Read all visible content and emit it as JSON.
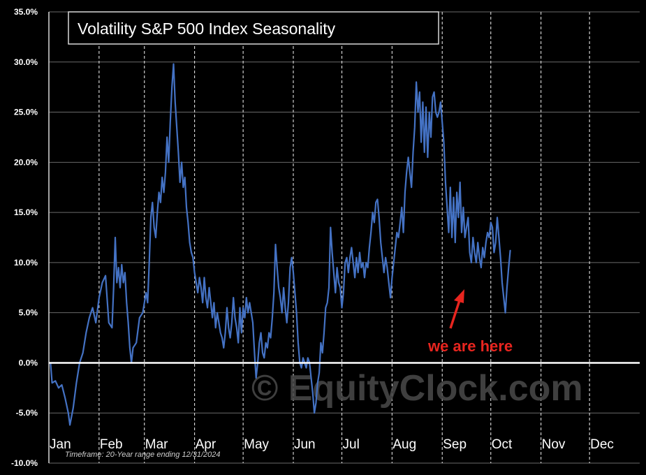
{
  "chart_data": {
    "type": "line",
    "title": "Volatility S&P 500 Index Seasonality",
    "footnote": "Timeframe: 20-Year range ending 12/31/2024",
    "watermark": "© EquityClock.com",
    "annotation": {
      "text": "we are here",
      "color": "#e8251f"
    },
    "xlabel": "",
    "ylabel": "",
    "x_months": [
      "Jan",
      "Feb",
      "Mar",
      "Apr",
      "May",
      "Jun",
      "Jul",
      "Aug",
      "Sep",
      "Oct",
      "Nov",
      "Dec"
    ],
    "y_ticks": [
      "35.0%",
      "30.0%",
      "25.0%",
      "20.0%",
      "15.0%",
      "10.0%",
      "5.0%",
      "0.0%",
      "-5.0%",
      "-10.0%"
    ],
    "ylim": [
      -10,
      35
    ],
    "xlim": [
      0,
      365
    ],
    "grid": {
      "horizontal": "solid",
      "vertical": "dashed"
    },
    "line_color": "#4472c4",
    "background": "#000000",
    "series": [
      {
        "values": [
          [
            1,
            0.0
          ],
          [
            2,
            -2.0
          ],
          [
            4,
            -1.8
          ],
          [
            6,
            -2.5
          ],
          [
            8,
            -2.2
          ],
          [
            10,
            -3.5
          ],
          [
            12,
            -5.0
          ],
          [
            13,
            -6.2
          ],
          [
            15,
            -4.5
          ],
          [
            17,
            -2.0
          ],
          [
            19,
            0.0
          ],
          [
            21,
            1.0
          ],
          [
            23,
            3.0
          ],
          [
            25,
            4.5
          ],
          [
            27,
            5.5
          ],
          [
            29,
            4.0
          ],
          [
            31,
            6.5
          ],
          [
            33,
            8.0
          ],
          [
            35,
            8.7
          ],
          [
            37,
            4.0
          ],
          [
            39,
            3.5
          ],
          [
            40,
            7.5
          ],
          [
            41,
            12.5
          ],
          [
            42,
            8.0
          ],
          [
            43,
            9.5
          ],
          [
            44,
            7.5
          ],
          [
            45,
            9.8
          ],
          [
            46,
            8.0
          ],
          [
            47,
            9.0
          ],
          [
            48,
            6.0
          ],
          [
            49,
            4.0
          ],
          [
            50,
            1.5
          ],
          [
            51,
            0.0
          ],
          [
            52,
            1.5
          ],
          [
            54,
            2.0
          ],
          [
            56,
            4.5
          ],
          [
            58,
            5.0
          ],
          [
            60,
            7.0
          ],
          [
            61,
            6.0
          ],
          [
            62,
            10.0
          ],
          [
            63,
            14.5
          ],
          [
            64,
            16.0
          ],
          [
            65,
            13.5
          ],
          [
            66,
            12.5
          ],
          [
            67,
            15.0
          ],
          [
            68,
            17.0
          ],
          [
            69,
            16.0
          ],
          [
            70,
            18.5
          ],
          [
            71,
            17.0
          ],
          [
            72,
            19.0
          ],
          [
            73,
            22.5
          ],
          [
            74,
            20.0
          ],
          [
            75,
            24.0
          ],
          [
            76,
            27.5
          ],
          [
            77,
            29.8
          ],
          [
            78,
            26.0
          ],
          [
            79,
            23.5
          ],
          [
            80,
            21.0
          ],
          [
            81,
            18.0
          ],
          [
            82,
            20.0
          ],
          [
            83,
            17.5
          ],
          [
            84,
            18.5
          ],
          [
            85,
            15.5
          ],
          [
            86,
            14.0
          ],
          [
            87,
            12.0
          ],
          [
            88,
            11.0
          ],
          [
            89,
            10.5
          ],
          [
            90,
            9.0
          ],
          [
            91,
            8.0
          ],
          [
            92,
            7.0
          ],
          [
            93,
            8.5
          ],
          [
            94,
            7.5
          ],
          [
            95,
            6.0
          ],
          [
            96,
            8.5
          ],
          [
            97,
            6.5
          ],
          [
            98,
            5.5
          ],
          [
            99,
            7.5
          ],
          [
            100,
            6.0
          ],
          [
            101,
            4.5
          ],
          [
            102,
            6.0
          ],
          [
            103,
            3.5
          ],
          [
            104,
            5.0
          ],
          [
            105,
            4.0
          ],
          [
            106,
            3.0
          ],
          [
            107,
            2.5
          ],
          [
            108,
            1.5
          ],
          [
            109,
            3.0
          ],
          [
            110,
            5.5
          ],
          [
            111,
            3.5
          ],
          [
            112,
            2.5
          ],
          [
            113,
            4.0
          ],
          [
            114,
            6.5
          ],
          [
            115,
            4.5
          ],
          [
            116,
            3.5
          ],
          [
            117,
            2.0
          ],
          [
            118,
            5.5
          ],
          [
            119,
            3.0
          ],
          [
            120,
            5.5
          ],
          [
            121,
            4.5
          ],
          [
            122,
            6.5
          ],
          [
            123,
            5.0
          ],
          [
            124,
            6.0
          ],
          [
            125,
            5.0
          ],
          [
            126,
            4.0
          ],
          [
            127,
            1.0
          ],
          [
            128,
            -1.5
          ],
          [
            129,
            0.0
          ],
          [
            130,
            2.0
          ],
          [
            131,
            3.0
          ],
          [
            132,
            1.0
          ],
          [
            133,
            0.5
          ],
          [
            134,
            2.0
          ],
          [
            135,
            1.5
          ],
          [
            136,
            3.0
          ],
          [
            137,
            2.5
          ],
          [
            138,
            4.5
          ],
          [
            139,
            7.0
          ],
          [
            140,
            11.8
          ],
          [
            141,
            9.5
          ],
          [
            142,
            7.5
          ],
          [
            143,
            6.5
          ],
          [
            144,
            5.0
          ],
          [
            145,
            7.5
          ],
          [
            146,
            5.5
          ],
          [
            147,
            4.0
          ],
          [
            148,
            6.0
          ],
          [
            149,
            9.5
          ],
          [
            150,
            10.5
          ],
          [
            151,
            9.0
          ],
          [
            152,
            7.0
          ],
          [
            153,
            5.0
          ],
          [
            154,
            2.0
          ],
          [
            155,
            0.0
          ],
          [
            156,
            -0.5
          ],
          [
            157,
            0.5
          ],
          [
            158,
            0.0
          ],
          [
            159,
            -0.5
          ],
          [
            160,
            0.5
          ],
          [
            161,
            0.0
          ],
          [
            162,
            -1.5
          ],
          [
            163,
            -3.0
          ],
          [
            164,
            -5.0
          ],
          [
            165,
            -4.0
          ],
          [
            166,
            -2.0
          ],
          [
            167,
            -1.0
          ],
          [
            168,
            2.0
          ],
          [
            169,
            1.0
          ],
          [
            170,
            3.0
          ],
          [
            171,
            5.5
          ],
          [
            172,
            6.0
          ],
          [
            173,
            7.5
          ],
          [
            174,
            13.5
          ],
          [
            175,
            11.0
          ],
          [
            176,
            9.0
          ],
          [
            177,
            7.0
          ],
          [
            178,
            9.5
          ],
          [
            179,
            8.0
          ],
          [
            180,
            7.5
          ],
          [
            181,
            5.5
          ],
          [
            182,
            7.0
          ],
          [
            183,
            10.0
          ],
          [
            184,
            10.5
          ],
          [
            185,
            9.0
          ],
          [
            186,
            10.5
          ],
          [
            187,
            11.5
          ],
          [
            188,
            10.0
          ],
          [
            189,
            8.5
          ],
          [
            190,
            10.5
          ],
          [
            191,
            9.0
          ],
          [
            192,
            11.0
          ],
          [
            193,
            9.5
          ],
          [
            194,
            10.0
          ],
          [
            195,
            8.5
          ],
          [
            196,
            10.0
          ],
          [
            197,
            9.5
          ],
          [
            198,
            11.5
          ],
          [
            199,
            13.0
          ],
          [
            200,
            15.0
          ],
          [
            201,
            14.0
          ],
          [
            202,
            16.0
          ],
          [
            203,
            16.3
          ],
          [
            204,
            14.5
          ],
          [
            205,
            12.0
          ],
          [
            206,
            10.5
          ],
          [
            207,
            9.0
          ],
          [
            208,
            10.5
          ],
          [
            209,
            9.5
          ],
          [
            210,
            8.0
          ],
          [
            211,
            6.5
          ],
          [
            212,
            8.5
          ],
          [
            213,
            10.0
          ],
          [
            214,
            11.5
          ],
          [
            215,
            13.0
          ],
          [
            216,
            12.5
          ],
          [
            217,
            14.0
          ],
          [
            218,
            15.5
          ],
          [
            219,
            13.0
          ],
          [
            220,
            17.0
          ],
          [
            221,
            19.0
          ],
          [
            222,
            20.5
          ],
          [
            223,
            19.0
          ],
          [
            224,
            17.5
          ],
          [
            225,
            21.0
          ],
          [
            226,
            23.5
          ],
          [
            227,
            28.0
          ],
          [
            228,
            25.0
          ],
          [
            229,
            27.0
          ],
          [
            230,
            22.0
          ],
          [
            231,
            26.0
          ],
          [
            232,
            21.0
          ],
          [
            233,
            25.5
          ],
          [
            234,
            20.5
          ],
          [
            235,
            25.0
          ],
          [
            236,
            22.5
          ],
          [
            237,
            26.5
          ],
          [
            238,
            27.0
          ],
          [
            239,
            25.0
          ],
          [
            240,
            24.5
          ],
          [
            241,
            25.0
          ],
          [
            242,
            26.0
          ],
          [
            243,
            24.0
          ],
          [
            244,
            22.0
          ],
          [
            245,
            18.0
          ],
          [
            246,
            15.5
          ],
          [
            247,
            13.0
          ],
          [
            248,
            17.5
          ],
          [
            249,
            12.5
          ],
          [
            250,
            16.5
          ],
          [
            251,
            12.0
          ],
          [
            252,
            17.0
          ],
          [
            253,
            14.5
          ],
          [
            254,
            18.0
          ],
          [
            255,
            13.0
          ],
          [
            256,
            15.5
          ],
          [
            257,
            12.5
          ],
          [
            258,
            13.5
          ],
          [
            259,
            14.5
          ],
          [
            260,
            11.0
          ],
          [
            261,
            10.0
          ],
          [
            262,
            12.5
          ],
          [
            263,
            11.0
          ],
          [
            264,
            10.0
          ],
          [
            265,
            12.0
          ],
          [
            266,
            10.5
          ],
          [
            267,
            9.5
          ],
          [
            268,
            11.5
          ],
          [
            269,
            10.5
          ],
          [
            270,
            12.0
          ],
          [
            271,
            13.0
          ],
          [
            272,
            12.5
          ],
          [
            273,
            14.0
          ],
          [
            274,
            13.5
          ],
          [
            275,
            11.0
          ],
          [
            276,
            12.0
          ],
          [
            277,
            14.5
          ],
          [
            278,
            12.5
          ],
          [
            279,
            10.5
          ],
          [
            280,
            8.0
          ],
          [
            281,
            6.5
          ],
          [
            282,
            5.0
          ],
          [
            283,
            7.5
          ],
          [
            284,
            9.5
          ],
          [
            285,
            11.2
          ]
        ]
      }
    ]
  }
}
